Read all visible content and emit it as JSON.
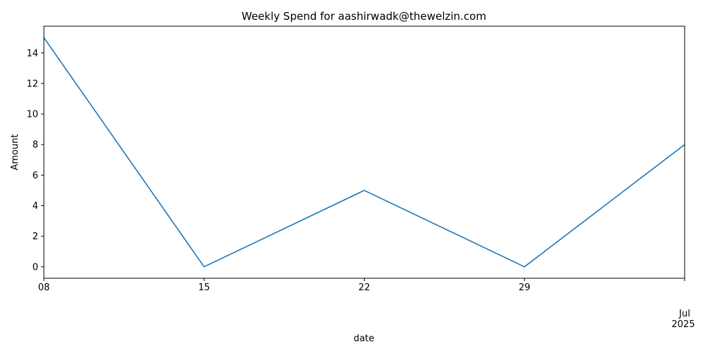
{
  "chart_data": {
    "type": "line",
    "title": "Weekly Spend for aashirwadk@thewelzin.com",
    "xlabel": "date",
    "ylabel": "Amount",
    "x": [
      "2025-06-08",
      "2025-06-15",
      "2025-06-22",
      "2025-06-29",
      "2025-07-06"
    ],
    "series": [
      {
        "values": [
          15,
          0,
          5,
          0,
          8
        ],
        "color": "#1f77b4"
      }
    ],
    "x_ticks": [
      {
        "value": "2025-06-08",
        "label": "08"
      },
      {
        "value": "2025-06-15",
        "label": "15"
      },
      {
        "value": "2025-06-22",
        "label": "22"
      },
      {
        "value": "2025-06-29",
        "label": "29"
      },
      {
        "value": "2025-07-06",
        "label": "Jul",
        "label2": "2025"
      }
    ],
    "y_ticks": [
      0,
      2,
      4,
      6,
      8,
      10,
      12,
      14
    ],
    "ylim": [
      -0.75,
      15.75
    ],
    "xlim": [
      "2025-06-08",
      "2025-07-06"
    ],
    "grid": false,
    "legend": "none"
  }
}
